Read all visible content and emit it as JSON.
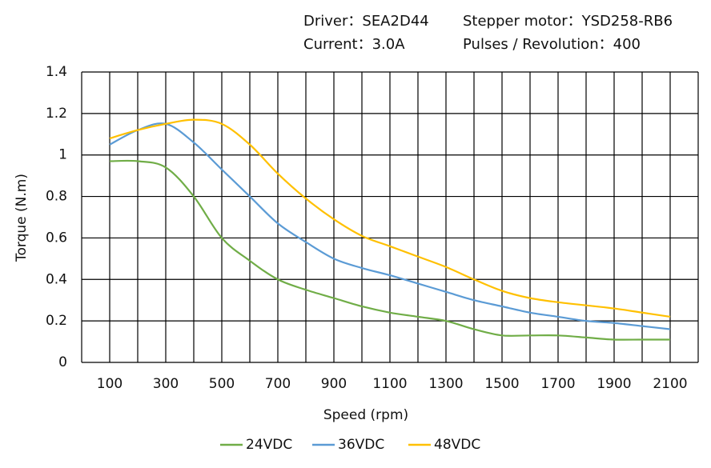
{
  "chart_data": {
    "type": "line",
    "annotations": [
      "Driver：SEA2D44",
      "Stepper motor：YSD258-RB6",
      "Current：3.0A",
      "Pulses / Revolution：400"
    ],
    "x_label": "Speed (rpm)",
    "y_label": "Torque (N.m)",
    "x": [
      100,
      200,
      300,
      400,
      500,
      600,
      700,
      800,
      900,
      1000,
      1100,
      1200,
      1300,
      1400,
      1500,
      1600,
      1700,
      1800,
      1900,
      2000,
      2100
    ],
    "series": [
      {
        "name": "24VDC",
        "color": "#70ad47",
        "values": [
          0.97,
          0.97,
          0.94,
          0.8,
          0.6,
          0.49,
          0.4,
          0.35,
          0.31,
          0.27,
          0.24,
          0.22,
          0.2,
          0.16,
          0.13,
          0.13,
          0.13,
          0.12,
          0.11,
          0.11,
          0.11
        ]
      },
      {
        "name": "36VDC",
        "color": "#5b9bd5",
        "values": [
          1.05,
          1.12,
          1.15,
          1.06,
          0.93,
          0.8,
          0.67,
          0.58,
          0.5,
          0.455,
          0.42,
          0.38,
          0.34,
          0.3,
          0.27,
          0.24,
          0.22,
          0.2,
          0.19,
          0.175,
          0.16
        ]
      },
      {
        "name": "48VDC",
        "color": "#ffc000",
        "values": [
          1.08,
          1.12,
          1.15,
          1.17,
          1.15,
          1.05,
          0.91,
          0.79,
          0.69,
          0.61,
          0.56,
          0.51,
          0.46,
          0.4,
          0.345,
          0.31,
          0.29,
          0.275,
          0.26,
          0.24,
          0.22
        ]
      }
    ],
    "xlim": [
      0,
      2200
    ],
    "xticks": [
      100,
      300,
      500,
      700,
      900,
      1100,
      1300,
      1500,
      1700,
      1900,
      2100
    ],
    "xgrid": [
      0,
      100,
      200,
      300,
      400,
      500,
      600,
      700,
      800,
      900,
      1000,
      1100,
      1200,
      1300,
      1400,
      1500,
      1600,
      1700,
      1800,
      1900,
      2000,
      2100,
      2200
    ],
    "ylim": [
      0,
      1.4
    ],
    "yticks": [
      0,
      0.2,
      0.4,
      0.6,
      0.8,
      1,
      1.2,
      1.4
    ],
    "grid": true,
    "legend": "bottom"
  }
}
